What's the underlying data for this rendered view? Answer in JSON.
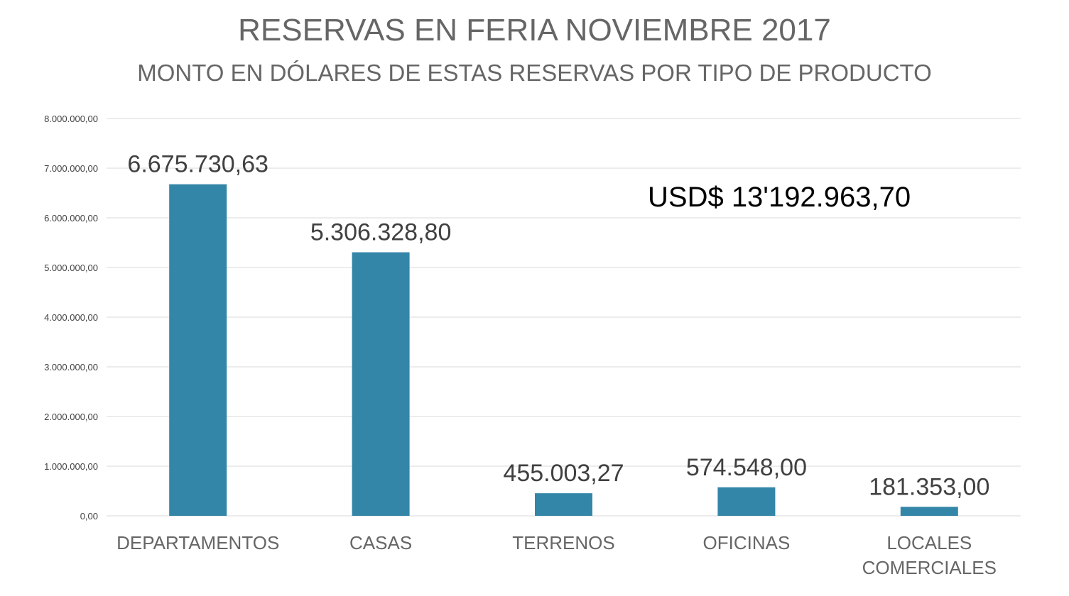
{
  "chart_data": {
    "type": "bar",
    "title": "RESERVAS EN FERIA NOVIEMBRE 2017",
    "subtitle": "MONTO EN DÓLARES DE ESTAS RESERVAS POR TIPO DE PRODUCTO",
    "categories": [
      [
        "DEPARTAMENTOS"
      ],
      [
        "CASAS"
      ],
      [
        "TERRENOS"
      ],
      [
        "OFICINAS"
      ],
      [
        "LOCALES",
        "COMERCIALES"
      ]
    ],
    "values": [
      6675730.63,
      5306328.8,
      455003.27,
      574548.0,
      181353.0
    ],
    "data_labels": [
      "6.675.730,63",
      "5.306.328,80",
      "455.003,27",
      "574.548,00",
      "181.353,00"
    ],
    "ylim": [
      0,
      8000000
    ],
    "yticks": [
      0,
      1000000,
      2000000,
      3000000,
      4000000,
      5000000,
      6000000,
      7000000,
      8000000
    ],
    "ytick_labels": [
      "0,00",
      "1.000.000,00",
      "2.000.000,00",
      "3.000.000,00",
      "4.000.000,00",
      "5.000.000,00",
      "6.000.000,00",
      "7.000.000,00",
      "8.000.000,00"
    ],
    "grid": true,
    "annotation": "USD$ 13'192.963,70",
    "bar_color": "#3486a8",
    "grid_color": "#d9d9d9",
    "text_color": "#666666",
    "label_color": "#404040"
  }
}
